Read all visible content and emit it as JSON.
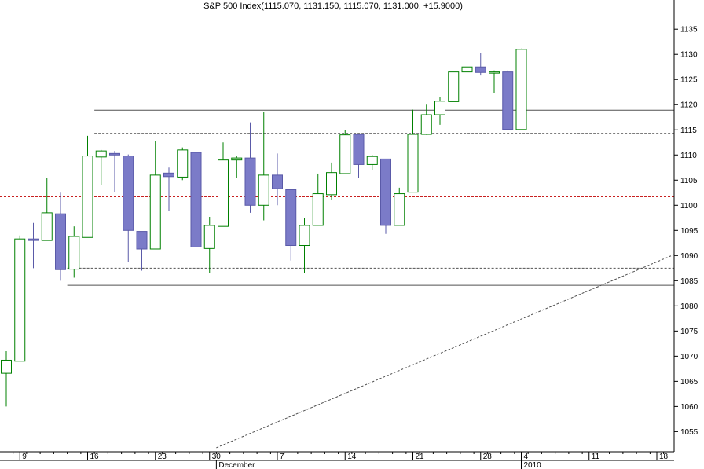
{
  "chart_data": {
    "type": "candlestick",
    "title": "S&P 500 Index(1115.070, 1131.150, 1115.070, 1131.000, +15.9000)",
    "ylim": [
      1051,
      1138
    ],
    "y_ticks": [
      1055,
      1060,
      1065,
      1070,
      1075,
      1080,
      1085,
      1090,
      1095,
      1100,
      1105,
      1110,
      1115,
      1120,
      1125,
      1130,
      1135
    ],
    "x_labels": [
      {
        "text": "9",
        "slot": 1.5
      },
      {
        "text": "16",
        "slot": 6.5
      },
      {
        "text": "23",
        "slot": 11.5
      },
      {
        "text": "30",
        "slot": 15.5
      },
      {
        "text": "7",
        "slot": 20.5
      },
      {
        "text": "14",
        "slot": 25.5
      },
      {
        "text": "21",
        "slot": 30.5
      },
      {
        "text": "28",
        "slot": 35.5
      },
      {
        "text": "4",
        "slot": 38.5
      },
      {
        "text": "11",
        "slot": 43.5
      },
      {
        "text": "18",
        "slot": 48.5
      }
    ],
    "x_month_labels": [
      {
        "text": "December",
        "slot": 16
      },
      {
        "text": "2010",
        "slot": 38.5
      }
    ],
    "colors": {
      "up_border": "#008000",
      "down_fill": "#7b7bc8",
      "down_border": "#5a5aa8"
    },
    "candles": [
      {
        "open": 1066.6,
        "high": 1071.0,
        "low": 1060.0,
        "close": 1069.2
      },
      {
        "open": 1069.0,
        "high": 1094.0,
        "low": 1069.0,
        "close": 1093.3
      },
      {
        "open": 1093.3,
        "high": 1096.5,
        "low": 1087.5,
        "close": 1093.0
      },
      {
        "open": 1093.0,
        "high": 1105.5,
        "low": 1093.0,
        "close": 1098.5
      },
      {
        "open": 1098.3,
        "high": 1102.5,
        "low": 1085.0,
        "close": 1087.2
      },
      {
        "open": 1087.3,
        "high": 1095.8,
        "low": 1085.6,
        "close": 1093.8
      },
      {
        "open": 1093.6,
        "high": 1113.8,
        "low": 1093.6,
        "close": 1109.8
      },
      {
        "open": 1109.6,
        "high": 1111.0,
        "low": 1104.0,
        "close": 1110.8
      },
      {
        "open": 1110.3,
        "high": 1110.8,
        "low": 1102.7,
        "close": 1110.0
      },
      {
        "open": 1109.8,
        "high": 1110.1,
        "low": 1088.8,
        "close": 1095.0
      },
      {
        "open": 1094.8,
        "high": 1094.8,
        "low": 1087.0,
        "close": 1091.3
      },
      {
        "open": 1091.3,
        "high": 1112.7,
        "low": 1091.3,
        "close": 1106.0
      },
      {
        "open": 1106.4,
        "high": 1107.5,
        "low": 1098.8,
        "close": 1105.7
      },
      {
        "open": 1105.6,
        "high": 1111.5,
        "low": 1105.0,
        "close": 1111.0
      },
      {
        "open": 1110.5,
        "high": 1110.5,
        "low": 1084.0,
        "close": 1091.7
      },
      {
        "open": 1091.4,
        "high": 1097.7,
        "low": 1086.6,
        "close": 1096.0
      },
      {
        "open": 1095.8,
        "high": 1112.5,
        "low": 1095.8,
        "close": 1109.0
      },
      {
        "open": 1109.0,
        "high": 1109.8,
        "low": 1105.5,
        "close": 1109.4
      },
      {
        "open": 1109.4,
        "high": 1116.5,
        "low": 1098.5,
        "close": 1100.0
      },
      {
        "open": 1100.0,
        "high": 1118.5,
        "low": 1097.0,
        "close": 1106.0
      },
      {
        "open": 1106.0,
        "high": 1110.3,
        "low": 1100.0,
        "close": 1103.3
      },
      {
        "open": 1103.1,
        "high": 1103.2,
        "low": 1089.0,
        "close": 1092.0
      },
      {
        "open": 1092.0,
        "high": 1097.5,
        "low": 1086.5,
        "close": 1096.0
      },
      {
        "open": 1096.0,
        "high": 1106.3,
        "low": 1096.0,
        "close": 1102.3
      },
      {
        "open": 1102.1,
        "high": 1108.5,
        "low": 1101.0,
        "close": 1106.5
      },
      {
        "open": 1106.3,
        "high": 1115.0,
        "low": 1106.3,
        "close": 1114.0
      },
      {
        "open": 1114.1,
        "high": 1114.1,
        "low": 1105.5,
        "close": 1108.1
      },
      {
        "open": 1108.1,
        "high": 1110.0,
        "low": 1107.0,
        "close": 1109.7
      },
      {
        "open": 1109.2,
        "high": 1109.2,
        "low": 1094.3,
        "close": 1096.0
      },
      {
        "open": 1096.0,
        "high": 1103.5,
        "low": 1096.0,
        "close": 1102.3
      },
      {
        "open": 1102.6,
        "high": 1119.0,
        "low": 1102.6,
        "close": 1114.1
      },
      {
        "open": 1114.1,
        "high": 1120.0,
        "low": 1114.0,
        "close": 1118.0
      },
      {
        "open": 1118.0,
        "high": 1121.5,
        "low": 1116.0,
        "close": 1120.7
      },
      {
        "open": 1120.6,
        "high": 1126.5,
        "low": 1120.6,
        "close": 1126.5
      },
      {
        "open": 1126.5,
        "high": 1130.5,
        "low": 1124.0,
        "close": 1127.5
      },
      {
        "open": 1127.5,
        "high": 1130.2,
        "low": 1125.8,
        "close": 1126.4
      },
      {
        "open": 1126.3,
        "high": 1126.8,
        "low": 1122.3,
        "close": 1126.5
      },
      {
        "open": 1126.5,
        "high": 1126.8,
        "low": 1115.0,
        "close": 1115.1
      },
      {
        "open": 1115.07,
        "high": 1131.15,
        "low": 1115.07,
        "close": 1131.0
      }
    ],
    "horizontal_lines": [
      {
        "y": 1118.9,
        "style": "solid",
        "color": "#505050",
        "from_slot": 6.5,
        "to_slot": 50
      },
      {
        "y": 1114.3,
        "style": "dashed",
        "color": "#505050",
        "from_slot": 6.5,
        "to_slot": 50
      },
      {
        "y": 1101.7,
        "style": "dashed",
        "color": "#c00000",
        "from_slot": 0,
        "to_slot": 50
      },
      {
        "y": 1087.5,
        "style": "dashed",
        "color": "#505050",
        "from_slot": 4.5,
        "to_slot": 50
      },
      {
        "y": 1084.1,
        "style": "solid",
        "color": "#505050",
        "from_slot": 4.5,
        "to_slot": 50
      }
    ],
    "trend_line": {
      "from": [
        15.5,
        1051.8
      ],
      "to": [
        50,
        1090.2
      ],
      "style": "dashed",
      "color": "#505050"
    }
  }
}
